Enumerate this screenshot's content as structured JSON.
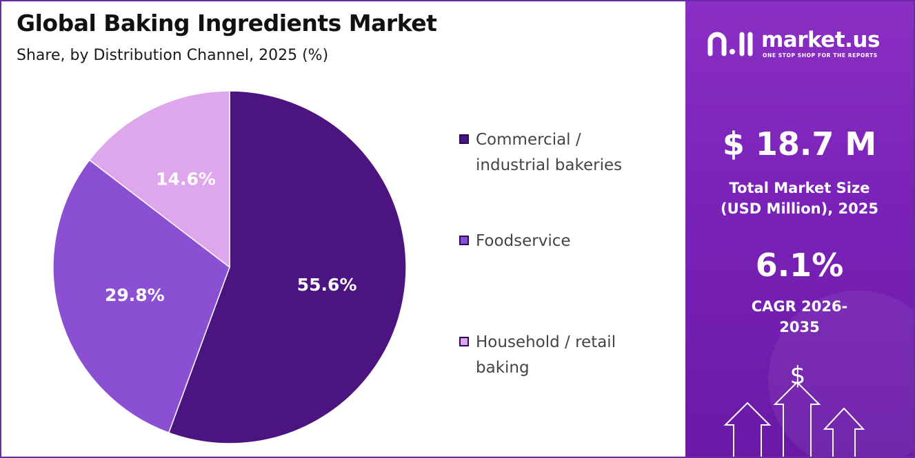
{
  "title": "Global Baking Ingredients Market",
  "subtitle": "Share, by Distribution Channel, 2025 (%)",
  "chart_data": {
    "type": "pie",
    "title": "Global Baking Ingredients Market",
    "subtitle": "Share, by Distribution Channel, 2025 (%)",
    "unit": "%",
    "categories": [
      "Commercial / industrial bakeries",
      "Foodservice",
      "Household / retail baking"
    ],
    "values": [
      55.6,
      29.8,
      14.6
    ],
    "labels": [
      "55.6%",
      "29.8%",
      "14.6%"
    ],
    "colors": [
      "#4b1480",
      "#8b4fd4",
      "#dea6ec"
    ],
    "legend_position": "right"
  },
  "legend": {
    "items": [
      {
        "label": "Commercial / industrial bakeries",
        "color": "#4b1480"
      },
      {
        "label": "Foodservice",
        "color": "#8b4fd4"
      },
      {
        "label": "Household / retail baking",
        "color": "#dea6ec"
      }
    ]
  },
  "sidebar": {
    "brand": "market.us",
    "tagline": "ONE STOP SHOP FOR THE REPORTS",
    "market_size_value": "$ 18.7 M",
    "market_size_label": "Total Market Size (USD Million), 2025",
    "cagr_value": "6.1%",
    "cagr_label": "CAGR 2026-2035",
    "decor_icon": "dollar-growth-arrows-icon",
    "accent_color": "#7a22b8"
  }
}
